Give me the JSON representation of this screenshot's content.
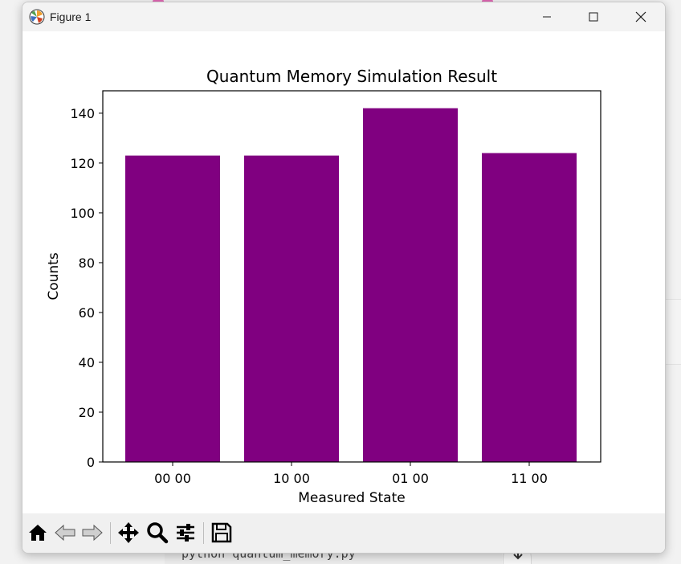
{
  "window": {
    "title": "Figure 1",
    "controls": [
      "minimize",
      "maximize",
      "close"
    ]
  },
  "background": {
    "terminal_text": "python quantum_memory.py"
  },
  "toolbar": {
    "tools": [
      {
        "name": "home-icon"
      },
      {
        "name": "back-arrow-icon"
      },
      {
        "name": "forward-arrow-icon"
      },
      {
        "name": "pan-icon"
      },
      {
        "name": "zoom-icon"
      },
      {
        "name": "configure-subplots-icon"
      },
      {
        "name": "save-icon"
      }
    ]
  },
  "chart_data": {
    "type": "bar",
    "title": "Quantum Memory Simulation Result",
    "xlabel": "Measured State",
    "ylabel": "Counts",
    "categories": [
      "00 00",
      "10 00",
      "01 00",
      "11 00"
    ],
    "values": [
      123,
      123,
      142,
      124
    ],
    "yticks": [
      0,
      20,
      40,
      60,
      80,
      100,
      120,
      140
    ],
    "ylim": [
      0,
      149
    ],
    "bar_color": "#800080",
    "grid": false,
    "legend": false
  }
}
